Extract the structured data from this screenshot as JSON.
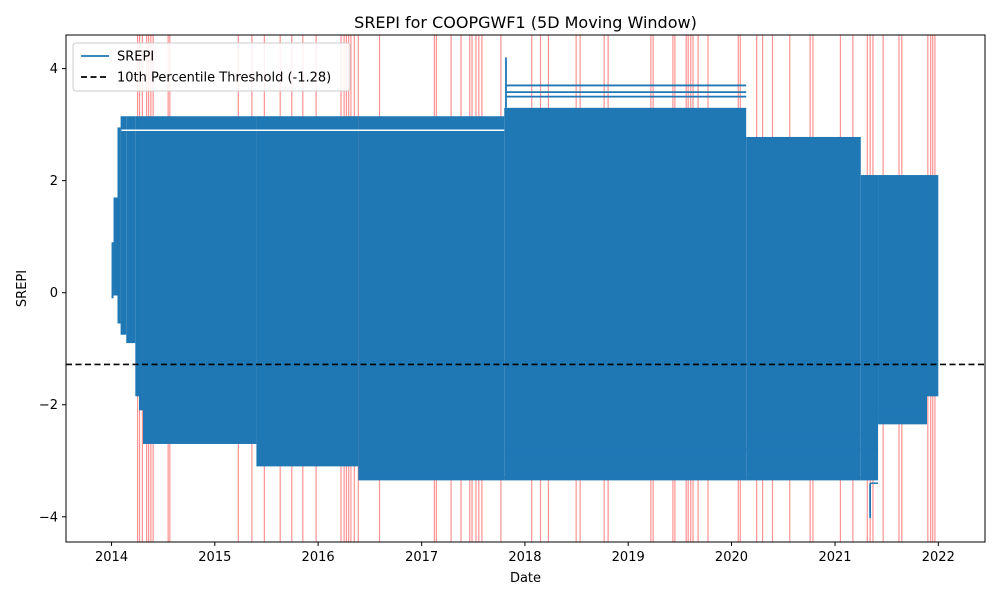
{
  "chart_data": {
    "type": "line",
    "title": "SREPI for COOPGWF1 (5D Moving Window)",
    "xlabel": "Date",
    "ylabel": "SREPI",
    "xlim": [
      "2013-07-24",
      "2022-06-15"
    ],
    "ylim": [
      -4.45,
      4.6
    ],
    "x_ticks": [
      "2014",
      "2015",
      "2016",
      "2017",
      "2018",
      "2019",
      "2020",
      "2021",
      "2022"
    ],
    "y_ticks": [
      -4,
      -2,
      0,
      2,
      4
    ],
    "legend_position": "upper-left",
    "legend": [
      {
        "label": "SREPI",
        "style": "solid",
        "color": "#1f77b4"
      },
      {
        "label": "10th Percentile Threshold (-1.28)",
        "style": "dashed",
        "color": "#000000"
      }
    ],
    "threshold": -1.28,
    "series": [
      {
        "name": "SREPI",
        "color": "#1f77b4",
        "segments": [
          {
            "x": [
              "2014-01-01",
              "2014-01-08"
            ],
            "ymin": -0.1,
            "ymax": 0.9
          },
          {
            "x": [
              "2014-01-08",
              "2014-01-22"
            ],
            "ymin": -0.05,
            "ymax": 1.7
          },
          {
            "x": [
              "2014-01-22",
              "2014-02-02"
            ],
            "ymin": -0.55,
            "ymax": 2.95
          },
          {
            "x": [
              "2014-02-02",
              "2014-02-22"
            ],
            "ymin": -0.75,
            "ymax": 3.15
          },
          {
            "x": [
              "2014-02-22",
              "2014-03-26"
            ],
            "ymin": -0.9,
            "ymax": 3.15
          },
          {
            "x": [
              "2014-03-26",
              "2014-04-08"
            ],
            "ymin": -1.85,
            "ymax": 3.15
          },
          {
            "x": [
              "2014-04-08",
              "2014-04-22"
            ],
            "ymin": -2.1,
            "ymax": 3.15
          },
          {
            "x": [
              "2014-04-22",
              "2015-05-28"
            ],
            "ymin": -2.7,
            "ymax": 3.15
          },
          {
            "x": [
              "2015-05-28",
              "2016-05-22"
            ],
            "ymin": -3.1,
            "ymax": 3.15
          },
          {
            "x": [
              "2016-05-22",
              "2017-10-20"
            ],
            "ymin": -3.35,
            "ymax": 3.15
          },
          {
            "x": [
              "2017-10-20",
              "2020-02-22"
            ],
            "ymin": -3.35,
            "ymax": 3.3
          },
          {
            "x": [
              "2020-02-22",
              "2021-04-02"
            ],
            "ymin": -3.35,
            "ymax": 2.78
          },
          {
            "x": [
              "2021-04-02",
              "2021-06-02"
            ],
            "ymin": -3.35,
            "ymax": 2.1
          },
          {
            "x": [
              "2021-06-02",
              "2021-11-22"
            ],
            "ymin": -2.35,
            "ymax": 2.1
          },
          {
            "x": [
              "2021-11-22",
              "2022-01-01"
            ],
            "ymin": -1.85,
            "ymax": 2.1
          }
        ],
        "spikes": [
          {
            "x": "2017-10-26",
            "ymin": 3.3,
            "ymax": 4.2
          },
          {
            "x": "2021-05-05",
            "ymin": -4.02,
            "ymax": -3.4
          }
        ],
        "upper_lines": [
          {
            "x": [
              "2017-10-26",
              "2020-02-22"
            ],
            "y": 3.7
          },
          {
            "x": [
              "2017-10-26",
              "2020-02-22"
            ],
            "y": 3.58
          },
          {
            "x": [
              "2017-10-26",
              "2020-02-22"
            ],
            "y": 3.5
          }
        ],
        "lower_lines": [
          {
            "x": [
              "2020-03-10",
              "2021-04-02"
            ],
            "y": -2.52
          },
          {
            "x": [
              "2017-10-26",
              "2021-06-02"
            ],
            "y": -2.8
          },
          {
            "x": [
              "2016-05-22",
              "2021-06-02"
            ],
            "y": -3.3
          },
          {
            "x": [
              "2021-05-05",
              "2021-06-02"
            ],
            "y": -3.4
          },
          {
            "x": [
              "2021-06-02",
              "2021-11-22"
            ],
            "y": -2.1
          }
        ],
        "gaps": [
          {
            "x": [
              "2014-02-05",
              "2017-10-20"
            ],
            "y": 2.9
          }
        ]
      }
    ],
    "highlight_dates": [
      "2014-04-03",
      "2014-04-10",
      "2014-04-20",
      "2014-05-05",
      "2014-05-12",
      "2014-05-20",
      "2014-05-28",
      "2014-07-20",
      "2014-07-26",
      "2015-03-25",
      "2015-05-12",
      "2015-06-25",
      "2015-08-20",
      "2015-09-30",
      "2015-11-08",
      "2015-12-25",
      "2016-03-22",
      "2016-04-02",
      "2016-04-10",
      "2016-04-18",
      "2016-04-26",
      "2016-05-08",
      "2016-05-22",
      "2016-08-05",
      "2017-02-15",
      "2017-02-22",
      "2017-04-15",
      "2017-05-20",
      "2017-06-20",
      "2017-06-28",
      "2017-07-12",
      "2017-07-22",
      "2017-08-02",
      "2017-10-08",
      "2018-01-25",
      "2018-02-25",
      "2018-03-25",
      "2018-07-01",
      "2018-07-15",
      "2018-10-08",
      "2018-10-22",
      "2019-03-22",
      "2019-03-30",
      "2019-06-08",
      "2019-06-15",
      "2019-07-25",
      "2019-08-01",
      "2019-08-10",
      "2019-08-18",
      "2019-09-05",
      "2019-10-10",
      "2020-01-25",
      "2020-02-01",
      "2020-03-30",
      "2020-04-20",
      "2020-05-25",
      "2020-07-25",
      "2020-10-05",
      "2020-10-15",
      "2021-01-20",
      "2021-03-05",
      "2021-04-25",
      "2021-05-05",
      "2021-05-15",
      "2021-06-20",
      "2021-08-15",
      "2021-08-25",
      "2021-11-25",
      "2021-12-05",
      "2021-12-12",
      "2021-12-20"
    ]
  }
}
